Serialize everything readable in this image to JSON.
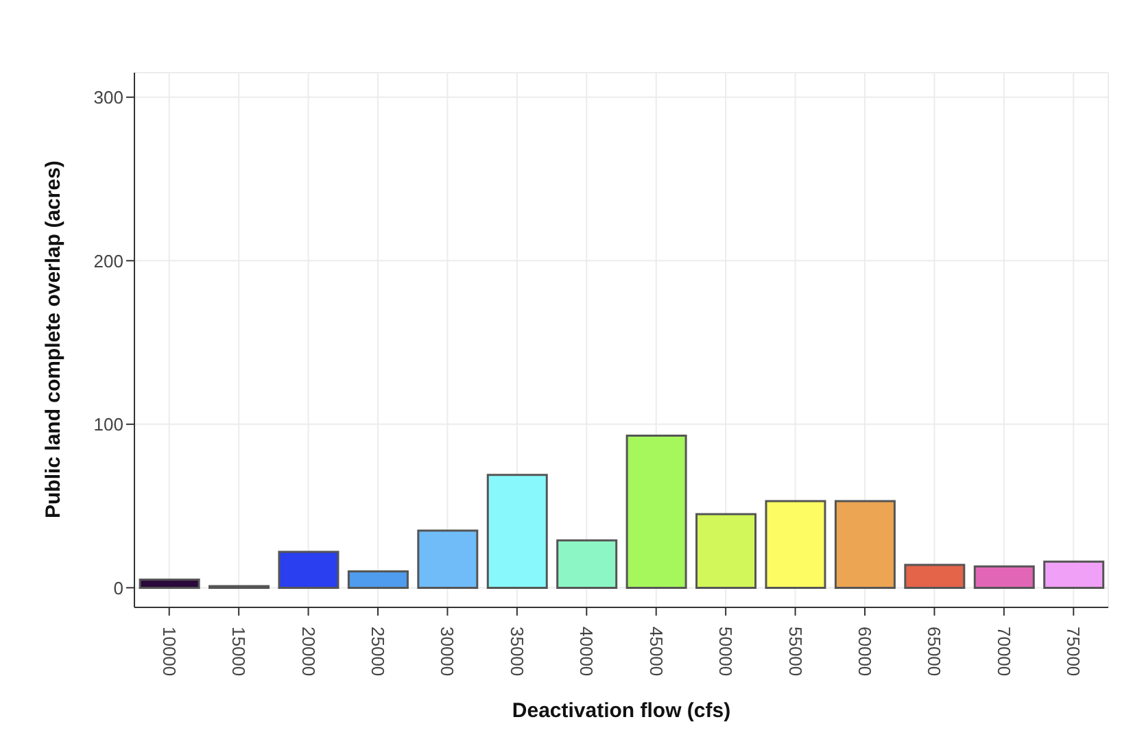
{
  "chart_data": {
    "type": "bar",
    "xlabel": "Deactivation flow (cfs)",
    "ylabel": "Public land complete overlap (acres)",
    "categories": [
      "10000",
      "15000",
      "20000",
      "25000",
      "30000",
      "35000",
      "40000",
      "45000",
      "50000",
      "55000",
      "60000",
      "65000",
      "70000",
      "75000"
    ],
    "values": [
      5,
      1,
      22,
      10,
      35,
      69,
      29,
      93,
      45,
      53,
      53,
      14,
      13,
      16
    ],
    "colors": [
      "#2a0a3a",
      "#cfcfcf",
      "#2a3ff0",
      "#4f9cee",
      "#6fbcf8",
      "#88f8fc",
      "#8cf7c4",
      "#a6f75c",
      "#d2f75a",
      "#fdfc62",
      "#eca552",
      "#e4644a",
      "#e266b6",
      "#f0a0f6"
    ],
    "ylim": [
      -12,
      315
    ],
    "yticks": [
      0,
      100,
      200,
      300
    ],
    "grid": true
  }
}
